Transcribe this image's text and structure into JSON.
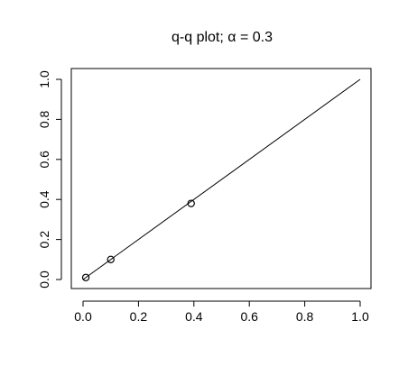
{
  "chart_data": {
    "type": "scatter",
    "title": "q-q plot;  α = 0.3",
    "xlabel": "",
    "ylabel": "",
    "xlim": [
      0,
      1
    ],
    "ylim": [
      0,
      1
    ],
    "x_ticks": [
      "0.0",
      "0.2",
      "0.4",
      "0.6",
      "0.8",
      "1.0"
    ],
    "y_ticks": [
      "0.0",
      "0.2",
      "0.4",
      "0.6",
      "0.8",
      "1.0"
    ],
    "grid": false,
    "points": [
      {
        "x": 0.01,
        "y": 0.01
      },
      {
        "x": 0.1,
        "y": 0.1
      },
      {
        "x": 0.39,
        "y": 0.38
      }
    ],
    "reference_line": {
      "from": [
        0,
        0
      ],
      "to": [
        1,
        1
      ]
    }
  }
}
